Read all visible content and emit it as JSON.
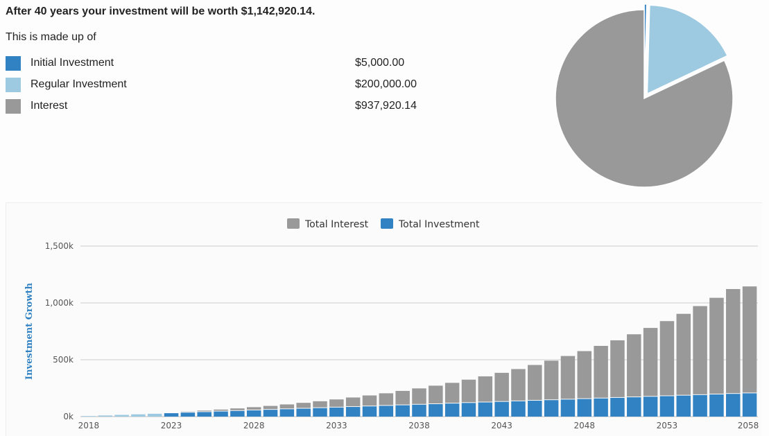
{
  "summary": {
    "headline": "After 40 years your investment will be worth $1,142,920.14.",
    "subline": "This is made up of",
    "items": [
      {
        "label": "Initial Investment",
        "value": "$5,000.00",
        "color": "#3182c3"
      },
      {
        "label": "Regular Investment",
        "value": "$200,000.00",
        "color": "#9ecae1"
      },
      {
        "label": "Interest",
        "value": "$937,920.14",
        "color": "#999999"
      }
    ]
  },
  "pie_data": {
    "type": "pie",
    "slices": [
      {
        "label": "Initial Investment",
        "value": 5000.0,
        "color": "#3182c3"
      },
      {
        "label": "Regular Investment",
        "value": 200000.0,
        "color": "#9ecae1"
      },
      {
        "label": "Interest",
        "value": 937920.14,
        "color": "#999999"
      }
    ]
  },
  "chart_data": {
    "type": "bar",
    "stacked": true,
    "ylabel": "Investment Growth",
    "ylim": [
      0,
      1500000
    ],
    "yticks": [
      {
        "value": 0,
        "label": "0k"
      },
      {
        "value": 500000,
        "label": "500k"
      },
      {
        "value": 1000000,
        "label": "1,000k"
      },
      {
        "value": 1500000,
        "label": "1,500k"
      }
    ],
    "xticks": [
      "2018",
      "2023",
      "2028",
      "2033",
      "2038",
      "2043",
      "2048",
      "2053",
      "2058"
    ],
    "grid": true,
    "legend_position": "top-center",
    "colors": {
      "interest": "#999999",
      "investment": "#3182c3",
      "axis_label": "#3182c3"
    },
    "categories": [
      2018,
      2019,
      2020,
      2021,
      2022,
      2023,
      2024,
      2025,
      2026,
      2027,
      2028,
      2029,
      2030,
      2031,
      2032,
      2033,
      2034,
      2035,
      2036,
      2037,
      2038,
      2039,
      2040,
      2041,
      2042,
      2043,
      2044,
      2045,
      2046,
      2047,
      2048,
      2049,
      2050,
      2051,
      2052,
      2053,
      2054,
      2055,
      2056,
      2057,
      2058
    ],
    "series": [
      {
        "name": "Total Interest",
        "color": "#999999",
        "values": [
          0,
          0,
          1000,
          2000,
          4000,
          6000,
          9000,
          13000,
          17000,
          22000,
          28000,
          34000,
          42000,
          51000,
          60000,
          71000,
          83000,
          96000,
          110000,
          126000,
          143000,
          162000,
          182000,
          205000,
          229000,
          255000,
          283000,
          314000,
          347000,
          383000,
          421000,
          462000,
          506000,
          554000,
          605000,
          660000,
          719000,
          782000,
          850000,
          922000,
          940000
        ]
      },
      {
        "name": "Total Investment",
        "color": "#3182c3",
        "values": [
          5000,
          10000,
          15000,
          20000,
          25000,
          30000,
          35000,
          40000,
          45000,
          50000,
          55000,
          60000,
          65000,
          70000,
          75000,
          80000,
          85000,
          90000,
          95000,
          100000,
          105000,
          110000,
          115000,
          120000,
          125000,
          130000,
          135000,
          140000,
          145000,
          150000,
          155000,
          160000,
          165000,
          170000,
          175000,
          180000,
          185000,
          190000,
          195000,
          200000,
          205000
        ]
      }
    ]
  }
}
